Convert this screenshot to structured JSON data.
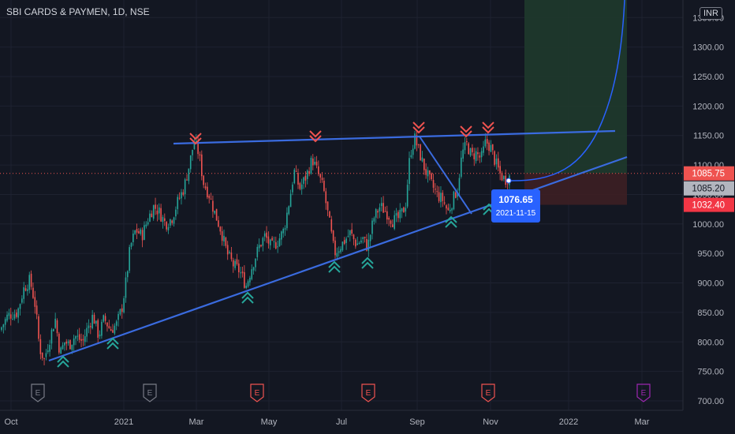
{
  "header": {
    "title": "SBI CARDS & PAYMEN, 1D, NSE",
    "currency": "INR"
  },
  "colors": {
    "background": "#131722",
    "grid": "#1e2230",
    "up": "#26a69a",
    "down": "#ef5350",
    "trendline": "#3a6bdf",
    "projection": "#2962ff",
    "profit_zone": "#1f3a2c",
    "loss_zone": "#3d1f24",
    "last_price_bg": "#ef5350",
    "mid_price_bg": "#b2b5be",
    "stop_bg": "#f23645",
    "highlight": "#2962ff",
    "earnings": "#ef5350",
    "future_earnings": "#9c27b0"
  },
  "chart_data": {
    "type": "candlestick",
    "symbol": "SBI CARDS & PAYMEN",
    "interval": "1D",
    "exchange": "NSE",
    "x_tick_labels": [
      "Oct",
      "2021",
      "Mar",
      "May",
      "Jul",
      "Sep",
      "Nov",
      "2022",
      "Mar"
    ],
    "y_tick_labels": [
      "700.00",
      "750.00",
      "800.00",
      "850.00",
      "900.00",
      "950.00",
      "1000.00",
      "1050.00",
      "1100.00",
      "1150.00",
      "1200.00",
      "1250.00",
      "1300.00",
      "1350.00"
    ],
    "ylim": [
      690,
      1380
    ],
    "price_labels": {
      "last": "1085.75",
      "mid": "1085.20",
      "stop": "1032.40"
    },
    "highlight": {
      "price": "1076.65",
      "date": "2021-11-15"
    },
    "close_path": [
      [
        0,
        820
      ],
      [
        10,
        845
      ],
      [
        22,
        850
      ],
      [
        30,
        890
      ],
      [
        38,
        905
      ],
      [
        45,
        860
      ],
      [
        50,
        790
      ],
      [
        56,
        770
      ],
      [
        62,
        800
      ],
      [
        70,
        840
      ],
      [
        76,
        780
      ],
      [
        82,
        800
      ],
      [
        88,
        795
      ],
      [
        95,
        810
      ],
      [
        105,
        800
      ],
      [
        110,
        820
      ],
      [
        118,
        845
      ],
      [
        125,
        810
      ],
      [
        132,
        840
      ],
      [
        140,
        820
      ],
      [
        148,
        830
      ],
      [
        155,
        860
      ],
      [
        160,
        905
      ],
      [
        165,
        960
      ],
      [
        172,
        990
      ],
      [
        180,
        980
      ],
      [
        188,
        1010
      ],
      [
        195,
        1030
      ],
      [
        202,
        1020
      ],
      [
        210,
        1000
      ],
      [
        218,
        1010
      ],
      [
        226,
        1040
      ],
      [
        233,
        1060
      ],
      [
        240,
        1100
      ],
      [
        246,
        1140
      ],
      [
        252,
        1120
      ],
      [
        258,
        1070
      ],
      [
        265,
        1050
      ],
      [
        272,
        1020
      ],
      [
        280,
        990
      ],
      [
        288,
        950
      ],
      [
        296,
        930
      ],
      [
        304,
        920
      ],
      [
        312,
        895
      ],
      [
        320,
        930
      ],
      [
        328,
        960
      ],
      [
        336,
        980
      ],
      [
        344,
        960
      ],
      [
        352,
        970
      ],
      [
        360,
        990
      ],
      [
        367,
        1040
      ],
      [
        373,
        1090
      ],
      [
        380,
        1060
      ],
      [
        388,
        1080
      ],
      [
        396,
        1110
      ],
      [
        402,
        1090
      ],
      [
        410,
        1060
      ],
      [
        418,
        1000
      ],
      [
        424,
        950
      ],
      [
        430,
        960
      ],
      [
        436,
        970
      ],
      [
        444,
        985
      ],
      [
        452,
        965
      ],
      [
        460,
        975
      ],
      [
        466,
        960
      ],
      [
        474,
        1010
      ],
      [
        482,
        1030
      ],
      [
        490,
        1020
      ],
      [
        498,
        1005
      ],
      [
        506,
        1010
      ],
      [
        514,
        1030
      ],
      [
        520,
        1120
      ],
      [
        526,
        1145
      ],
      [
        532,
        1120
      ],
      [
        538,
        1095
      ],
      [
        546,
        1070
      ],
      [
        554,
        1050
      ],
      [
        562,
        1040
      ],
      [
        568,
        1020
      ],
      [
        574,
        1040
      ],
      [
        580,
        1060
      ],
      [
        586,
        1120
      ],
      [
        592,
        1135
      ],
      [
        598,
        1115
      ],
      [
        604,
        1120
      ],
      [
        610,
        1110
      ],
      [
        616,
        1140
      ],
      [
        622,
        1130
      ],
      [
        628,
        1105
      ],
      [
        634,
        1085
      ],
      [
        640,
        1075
      ],
      [
        645,
        1080
      ]
    ],
    "earnings_markers": [
      {
        "label": "E",
        "date_index": 48,
        "kind": "past"
      },
      {
        "label": "E",
        "date_index": 190,
        "kind": "past"
      },
      {
        "label": "E",
        "date_index": 326,
        "kind": "reported"
      },
      {
        "label": "E",
        "date_index": 467,
        "kind": "reported"
      },
      {
        "label": "E",
        "date_index": 619,
        "kind": "reported"
      },
      {
        "label": "E",
        "date_index": 816,
        "kind": "future"
      }
    ]
  }
}
